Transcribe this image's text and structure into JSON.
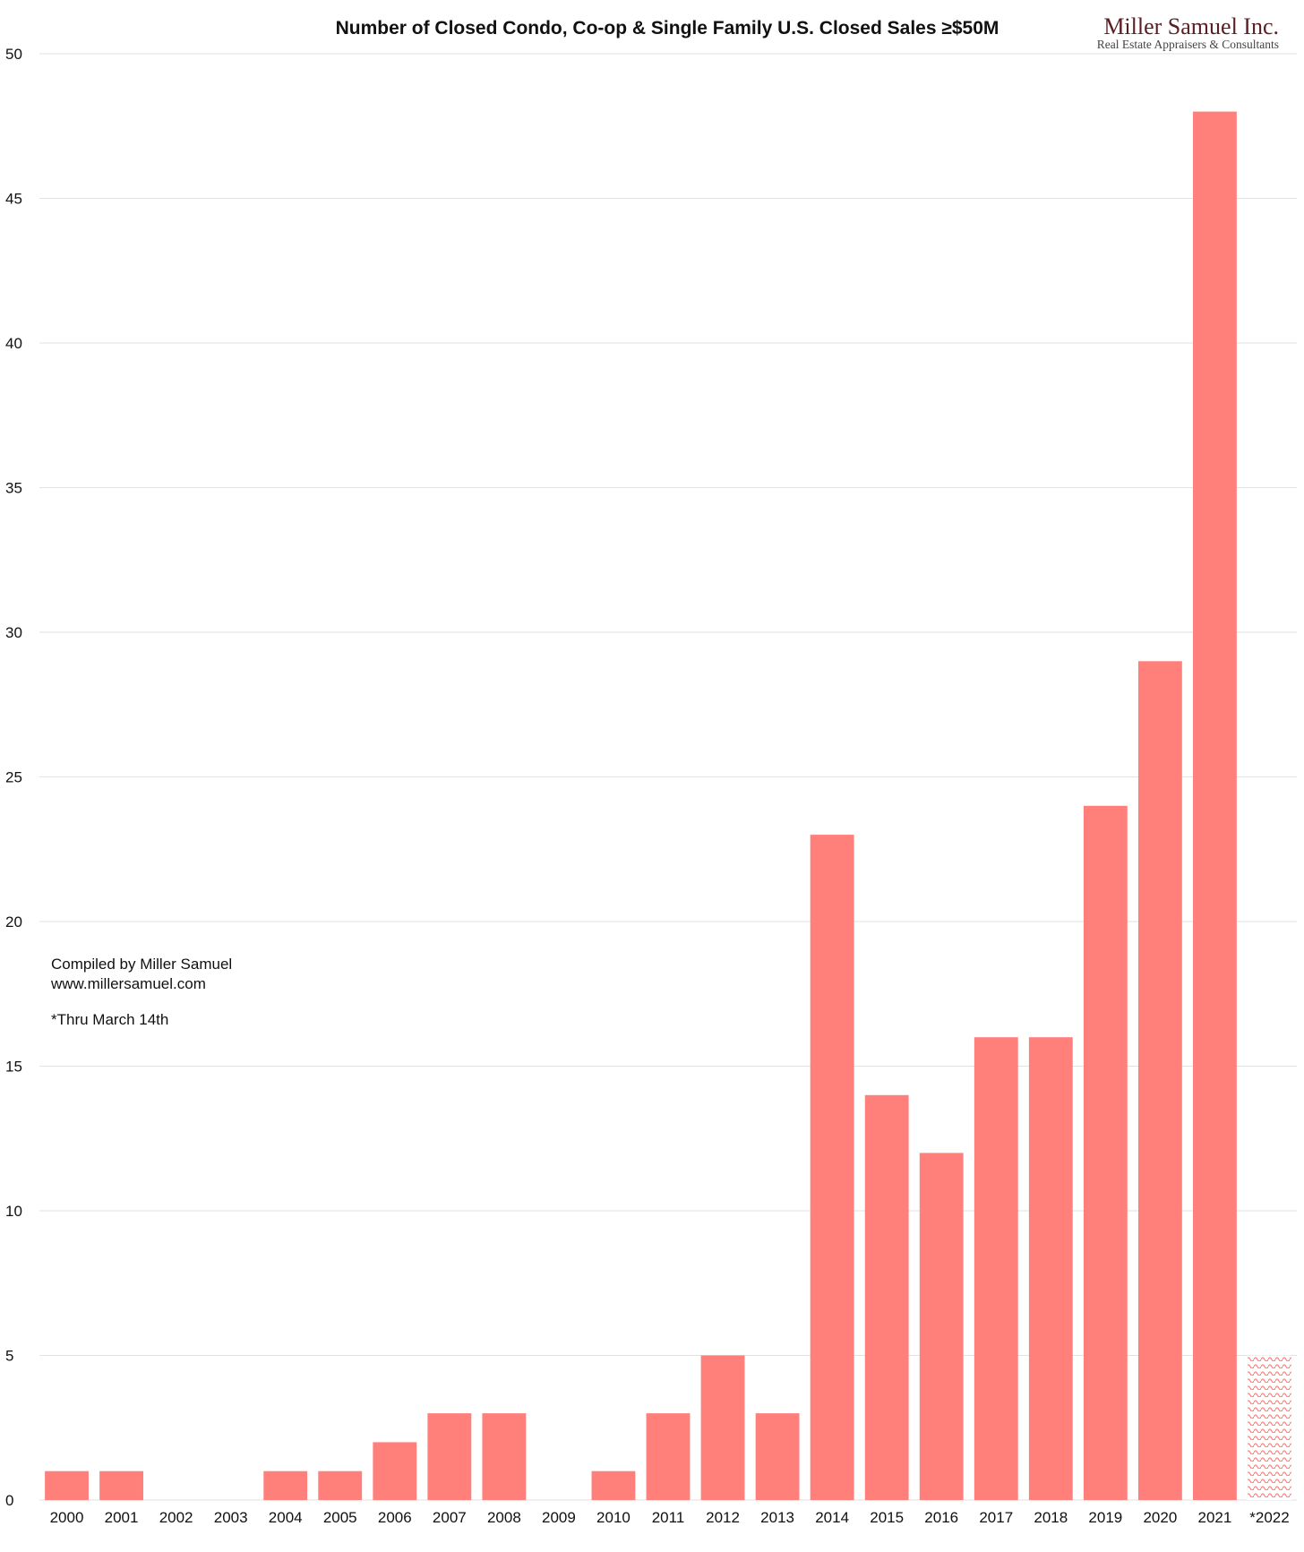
{
  "chart_data": {
    "type": "bar",
    "title": "Number of Closed Condo, Co-op & Single Family U.S. Closed Sales ≥$50M",
    "xlabel": "",
    "ylabel": "",
    "ylim": [
      0,
      50
    ],
    "yticks": [
      0,
      5,
      10,
      15,
      20,
      25,
      30,
      35,
      40,
      45,
      50
    ],
    "grid": true,
    "categories": [
      "2000",
      "2001",
      "2002",
      "2003",
      "2004",
      "2005",
      "2006",
      "2007",
      "2008",
      "2009",
      "2010",
      "2011",
      "2012",
      "2013",
      "2014",
      "2015",
      "2016",
      "2017",
      "2018",
      "2019",
      "2020",
      "2021",
      "*2022"
    ],
    "values": [
      1,
      1,
      0,
      0,
      1,
      1,
      2,
      3,
      3,
      0,
      1,
      3,
      5,
      3,
      23,
      14,
      12,
      16,
      16,
      24,
      29,
      48,
      5
    ],
    "partial_categories": [
      "*2022"
    ],
    "bar_color": "#ff7f7b",
    "annotations": [
      "Compiled by Miller Samuel",
      "www.millersamuel.com",
      "*Thru March 14th"
    ]
  },
  "logo": {
    "name": "Miller Samuel Inc.",
    "tagline": "Real Estate Appraisers & Consultants"
  }
}
